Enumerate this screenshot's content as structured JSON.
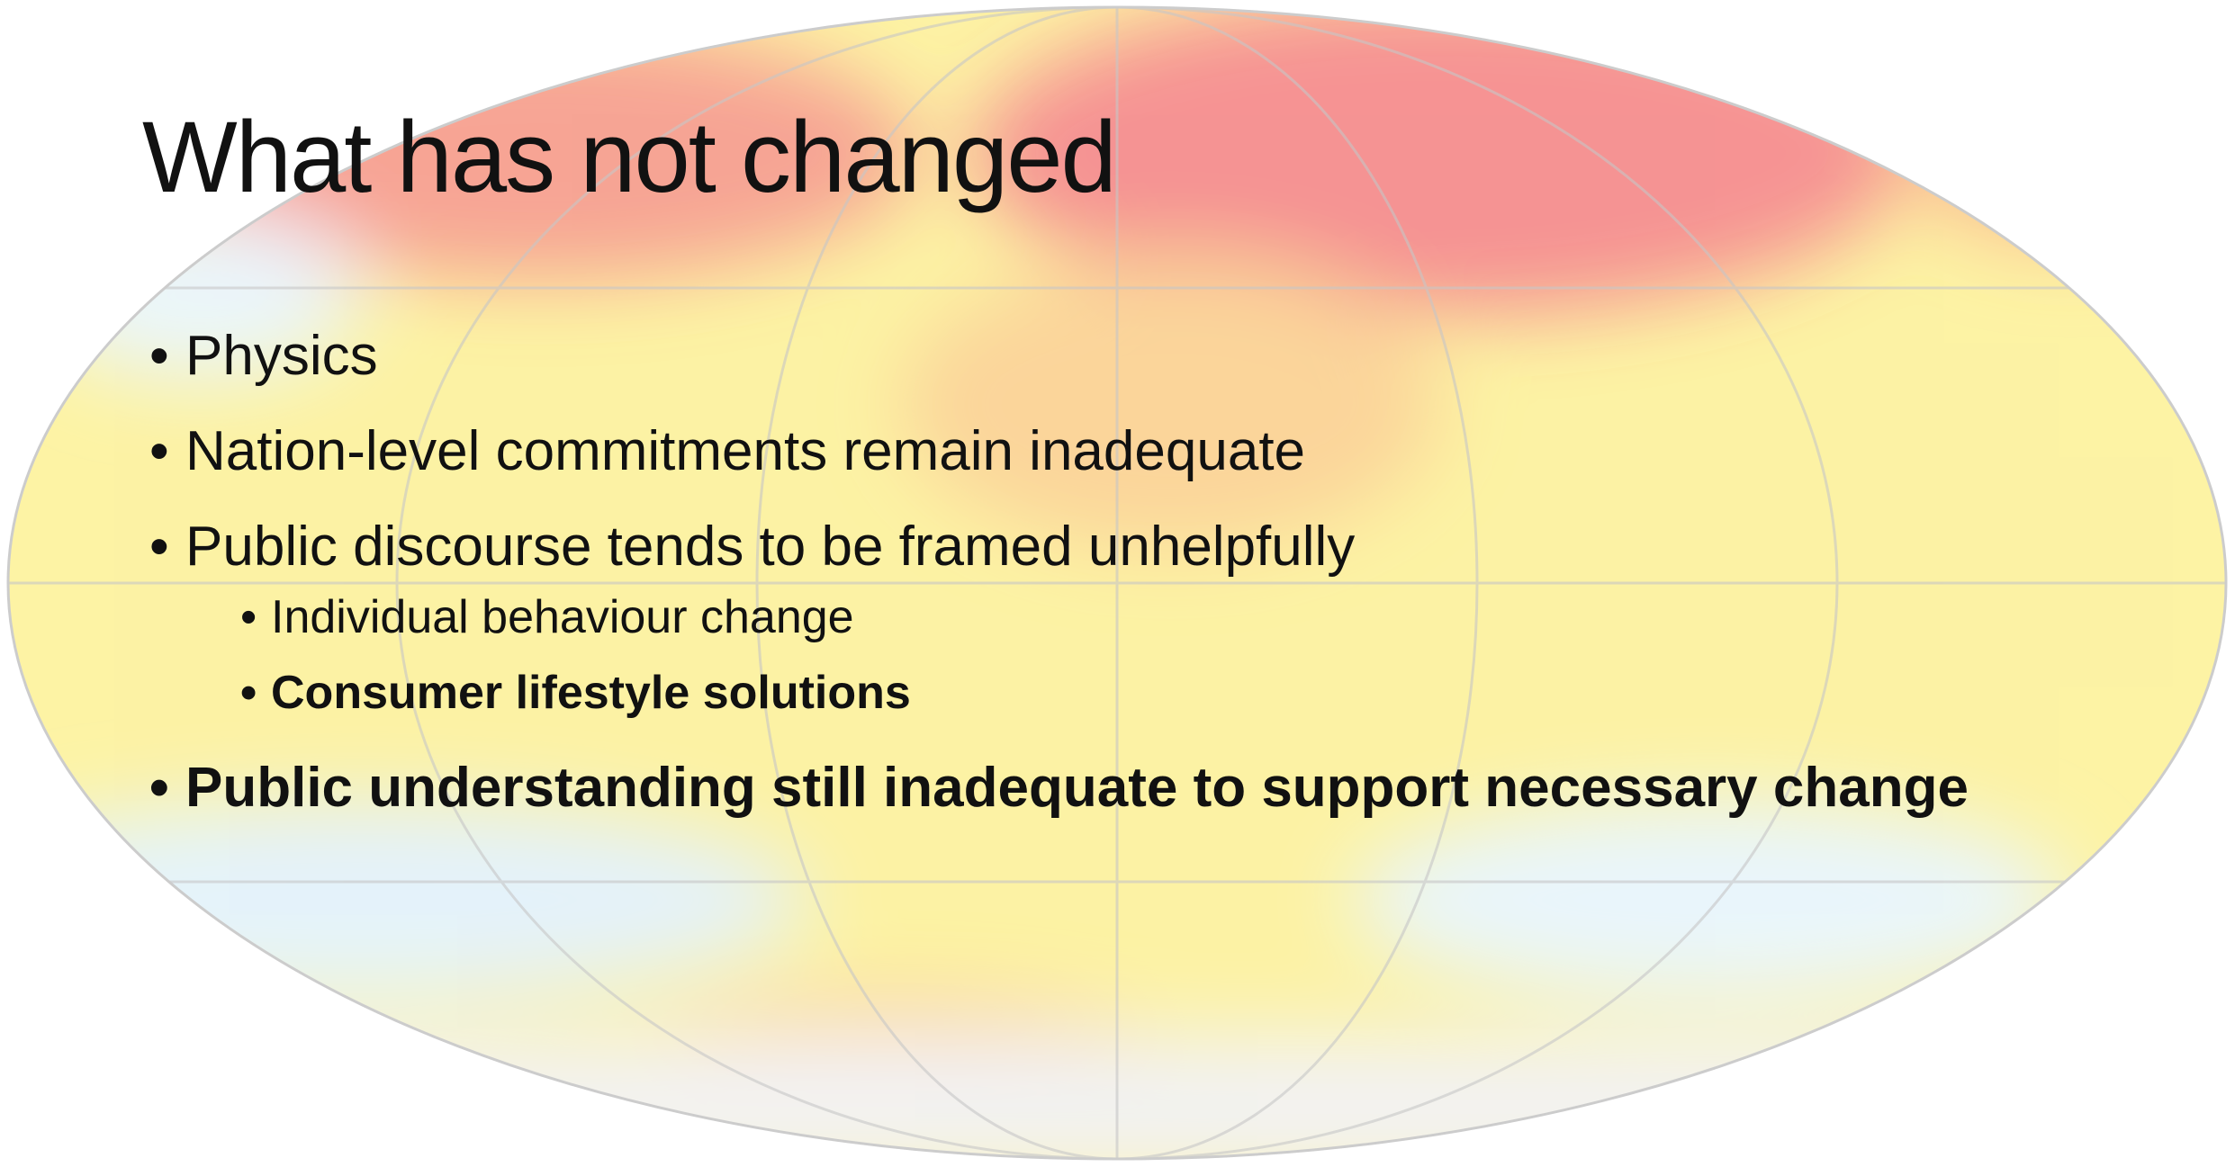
{
  "slide": {
    "title": "What has not changed",
    "bullets": [
      {
        "text": "Physics",
        "level": 1,
        "bold": false
      },
      {
        "text": "Nation-level commitments remain inadequate",
        "level": 1,
        "bold": false
      },
      {
        "text": "Public discourse tends to be framed unhelpfully",
        "level": 1,
        "bold": false
      },
      {
        "text": "Individual behaviour change",
        "level": 2,
        "bold": false
      },
      {
        "text": "Consumer lifestyle solutions",
        "level": 2,
        "bold": true
      },
      {
        "text": "Public understanding still inadequate to support necessary change",
        "level": 1,
        "bold": true
      }
    ]
  }
}
